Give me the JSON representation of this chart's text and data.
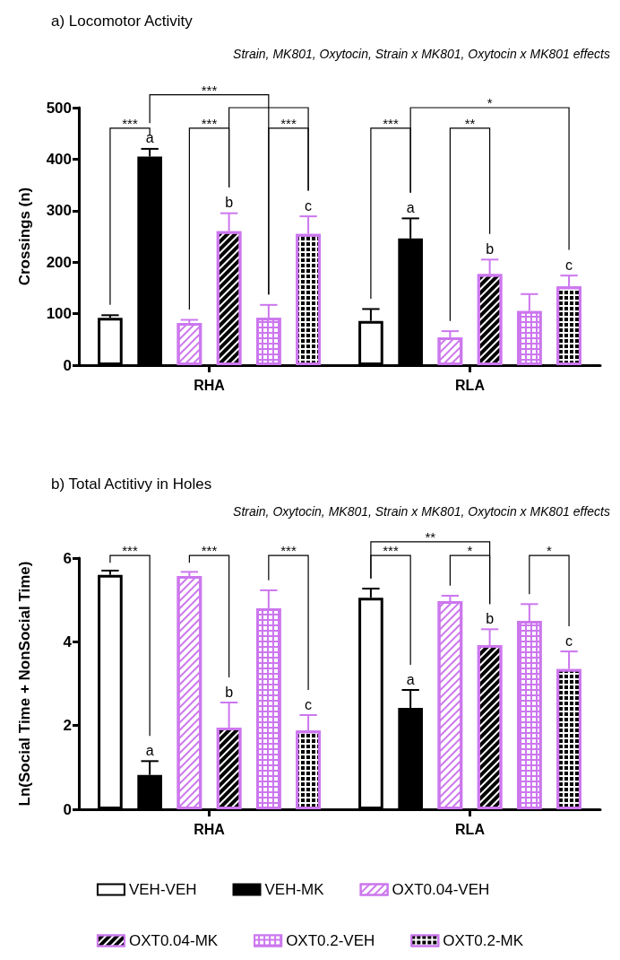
{
  "chart_data": [
    {
      "type": "bar",
      "title": "a) Locomotor Activity",
      "subtitle": "Strain, MK801, Oxytocin, Strain x MK801, Oxytocin x MK801 effects",
      "ylabel": "Crossings (n)",
      "categories": [
        "RHA",
        "RLA"
      ],
      "ylim": [
        0,
        500
      ],
      "yticks": [
        0,
        100,
        200,
        300,
        400,
        500
      ],
      "series": [
        {
          "color": "#000000",
          "values": [
            92,
            86
          ],
          "errors": [
            [
              92,
              97
            ],
            [
              86,
              109
            ]
          ]
        },
        {
          "color": "#000000",
          "values": [
            405,
            246
          ],
          "errors": [
            [
              405,
              420
            ],
            [
              246,
              285
            ]
          ],
          "value_labels": [
            "a",
            "a"
          ]
        },
        {
          "color": "#cc77ee",
          "values": [
            82,
            54
          ],
          "errors": [
            [
              82,
              88
            ],
            [
              54,
              66
            ]
          ]
        },
        {
          "color": "#cc77ee",
          "values": [
            260,
            177
          ],
          "errors": [
            [
              260,
              295
            ],
            [
              177,
              205
            ]
          ],
          "value_labels": [
            "b",
            "b"
          ]
        },
        {
          "color": "#cc77ee",
          "values": [
            92,
            105
          ],
          "errors": [
            [
              92,
              117
            ],
            [
              105,
              138
            ]
          ]
        },
        {
          "color": "#cc77ee",
          "values": [
            255,
            153
          ],
          "errors": [
            [
              255,
              289
            ],
            [
              153,
              174
            ]
          ],
          "value_labels": [
            "c",
            "c"
          ]
        }
      ],
      "annotations": [
        "***",
        "*",
        "***",
        "***",
        "***",
        "***",
        "**"
      ]
    },
    {
      "type": "bar",
      "title": "b) Total Actitivy in Holes",
      "subtitle": "Strain, Oxytocin, MK801, Strain x MK801, Oxytocin x MK801 effects",
      "ylabel": "Ln(Social Time + NonSocial Time)",
      "categories": [
        "RHA",
        "RLA"
      ],
      "ylim": [
        0,
        6
      ],
      "yticks": [
        0,
        2,
        4,
        6
      ],
      "legend": "bottom",
      "series": [
        {
          "name": "VEH-VEH",
          "color": "#000000",
          "values": [
            5.6,
            5.05
          ],
          "errors": [
            [
              5.6,
              5.7
            ],
            [
              5.05,
              5.27
            ]
          ]
        },
        {
          "name": "VEH-MK",
          "color": "#000000",
          "values": [
            0.82,
            2.42
          ],
          "errors": [
            [
              0.82,
              1.15
            ],
            [
              2.42,
              2.85
            ]
          ],
          "value_labels": [
            "a",
            "a"
          ]
        },
        {
          "name": "OXT0.04-VEH",
          "color": "#cc77ee",
          "values": [
            5.57,
            4.97
          ],
          "errors": [
            [
              5.57,
              5.67
            ],
            [
              4.97,
              5.1
            ]
          ]
        },
        {
          "name": "OXT0.04-MK",
          "color": "#cc77ee",
          "values": [
            1.95,
            3.92
          ],
          "errors": [
            [
              1.95,
              2.55
            ],
            [
              3.92,
              4.3
            ]
          ],
          "value_labels": [
            "b",
            "b"
          ]
        },
        {
          "name": "OXT0.2-VEH",
          "color": "#cc77ee",
          "values": [
            4.8,
            4.5
          ],
          "errors": [
            [
              4.8,
              5.23
            ],
            [
              4.5,
              4.9
            ]
          ]
        },
        {
          "name": "OXT0.2-MK",
          "color": "#cc77ee",
          "values": [
            1.88,
            3.35
          ],
          "errors": [
            [
              1.88,
              2.25
            ],
            [
              3.35,
              3.77
            ]
          ],
          "value_labels": [
            "c",
            "c"
          ]
        }
      ],
      "annotations": [
        "***",
        "***",
        "***",
        "***",
        "**",
        "*",
        "*"
      ]
    }
  ]
}
